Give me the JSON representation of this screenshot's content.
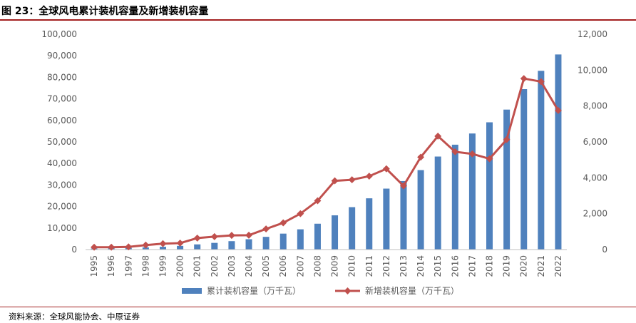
{
  "figure_title": "图 23：全球风电累计装机容量及新增装机容量",
  "source_note": "资料来源：全球风能协会、中原证券",
  "colors": {
    "bar": "#4f81bd",
    "line": "#c0504d",
    "accent_rule": "#a31f1f",
    "axis_text": "#595959"
  },
  "chart_data": {
    "type": "bar",
    "title": "",
    "categories": [
      "1995",
      "1996",
      "1997",
      "1998",
      "1999",
      "2000",
      "2001",
      "2002",
      "2003",
      "2004",
      "2005",
      "2006",
      "2007",
      "2008",
      "2009",
      "2010",
      "2011",
      "2012",
      "2013",
      "2014",
      "2015",
      "2016",
      "2017",
      "2018",
      "2019",
      "2020",
      "2021",
      "2022"
    ],
    "series": [
      {
        "name": "累计装机容量（万千瓦）",
        "type": "bar",
        "axis": "left",
        "values": [
          500,
          650,
          800,
          1000,
          1300,
          1700,
          2400,
          3100,
          3900,
          4800,
          5900,
          7400,
          9400,
          12000,
          15900,
          19700,
          23800,
          28300,
          31800,
          36900,
          43200,
          48700,
          53900,
          59100,
          65000,
          74500,
          83000,
          90600
        ]
      },
      {
        "name": "新增装机容量（万千瓦）",
        "type": "line",
        "axis": "right",
        "values": [
          130,
          130,
          150,
          250,
          330,
          360,
          640,
          720,
          790,
          800,
          1150,
          1490,
          2000,
          2720,
          3830,
          3890,
          4090,
          4500,
          3550,
          5150,
          6320,
          5450,
          5330,
          5060,
          6130,
          9530,
          9360,
          7750
        ]
      }
    ],
    "y_left": {
      "min": 0,
      "max": 100000,
      "step": 10000,
      "ticks": [
        "0",
        "10,000",
        "20,000",
        "30,000",
        "40,000",
        "50,000",
        "60,000",
        "70,000",
        "80,000",
        "90,000",
        "100,000"
      ]
    },
    "y_right": {
      "min": 0,
      "max": 12000,
      "step": 2000,
      "ticks": [
        "0",
        "2,000",
        "4,000",
        "6,000",
        "8,000",
        "10,000",
        "12,000"
      ]
    },
    "grid": false,
    "legend_position": "bottom"
  }
}
